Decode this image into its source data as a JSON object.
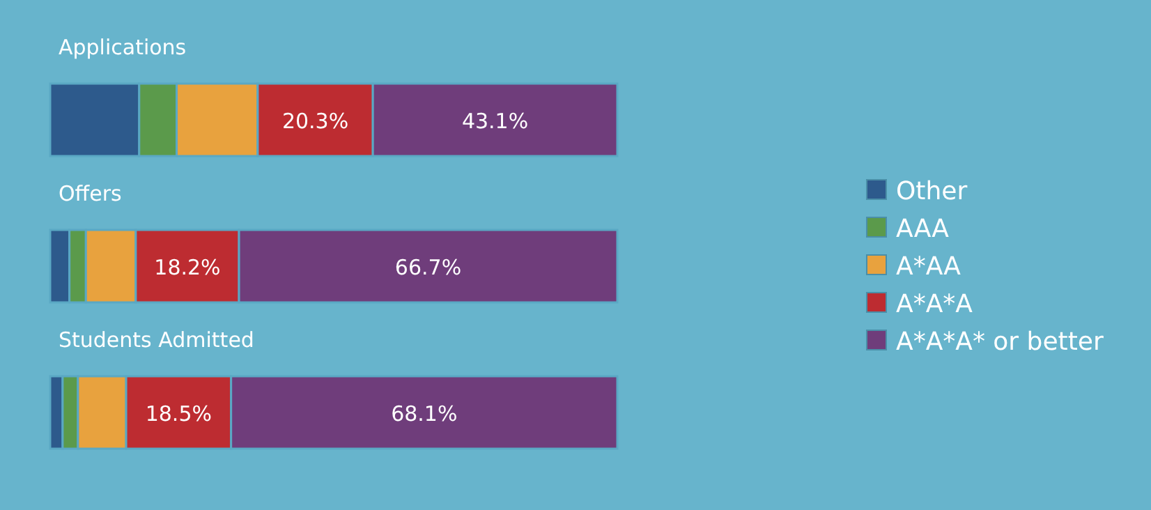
{
  "chart_data": {
    "type": "bar",
    "orientation": "horizontal",
    "stacked": true,
    "categories": [
      "Applications",
      "Offers",
      "Students Admitted"
    ],
    "xlim": [
      0,
      100
    ],
    "tick_labels": false,
    "grid": false,
    "legend": "right",
    "series": [
      {
        "name": "Other",
        "color": "#2d5a8c",
        "values": [
          15.7,
          3.4,
          2.2
        ],
        "value_labels": [
          null,
          null,
          null
        ]
      },
      {
        "name": "AAA",
        "color": "#5b9a4b",
        "values": [
          6.6,
          2.9,
          2.7
        ],
        "value_labels": [
          null,
          null,
          null
        ]
      },
      {
        "name": "A*AA",
        "color": "#e8a23e",
        "values": [
          14.3,
          8.8,
          8.5
        ],
        "value_labels": [
          null,
          null,
          null
        ]
      },
      {
        "name": "A*A*A",
        "color": "#bd2c31",
        "values": [
          20.3,
          18.2,
          18.5
        ],
        "value_labels": [
          "20.3%",
          "18.2%",
          "18.5%"
        ]
      },
      {
        "name": "A*A*A* or better",
        "color": "#6f3d7b",
        "values": [
          43.1,
          66.7,
          68.1
        ],
        "value_labels": [
          "43.1%",
          "66.7%",
          "68.1%"
        ]
      }
    ]
  }
}
